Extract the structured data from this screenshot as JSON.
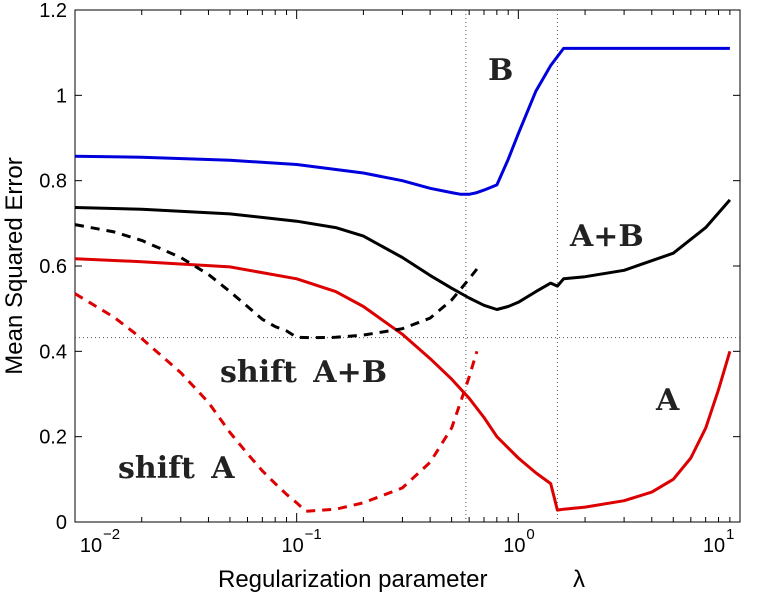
{
  "chart_data": {
    "type": "line",
    "title": "",
    "xlabel": "Regularization parameter",
    "xlabel_symbol": "λ",
    "ylabel": "Mean Squared Error",
    "xscale": "log",
    "xlim": [
      0.01,
      10
    ],
    "ylim": [
      0,
      1.2
    ],
    "grid": false,
    "xticks": [
      {
        "base": "10",
        "exp": "−2",
        "value": 0.01
      },
      {
        "base": "10",
        "exp": "−1",
        "value": 0.1
      },
      {
        "base": "10",
        "exp": "0",
        "value": 1
      },
      {
        "base": "10",
        "exp": "1",
        "value": 10
      }
    ],
    "yticks": [
      "0",
      "0.2",
      "0.4",
      "0.6",
      "0.8",
      "1",
      "1.2"
    ],
    "yticks_values": [
      0,
      0.2,
      0.4,
      0.6,
      0.8,
      1.0,
      1.2
    ],
    "reference_lines": [
      {
        "orientation": "vertical",
        "x": 0.58,
        "style": "dotted"
      },
      {
        "orientation": "vertical",
        "x": 1.5,
        "style": "dotted"
      },
      {
        "orientation": "horizontal",
        "y": 0.432,
        "style": "dotted"
      }
    ],
    "series": [
      {
        "name": "B",
        "color": "#0000dd",
        "style": "solid",
        "x": [
          0.01,
          0.02,
          0.05,
          0.1,
          0.2,
          0.3,
          0.4,
          0.5,
          0.55,
          0.6,
          0.65,
          0.7,
          0.8,
          0.9,
          1.0,
          1.2,
          1.4,
          1.6,
          2.0,
          3.0,
          5.0,
          9.0
        ],
        "y": [
          0.857,
          0.855,
          0.848,
          0.838,
          0.818,
          0.8,
          0.782,
          0.772,
          0.768,
          0.768,
          0.772,
          0.778,
          0.79,
          0.85,
          0.91,
          1.01,
          1.07,
          1.11,
          1.11,
          1.11,
          1.11,
          1.11
        ]
      },
      {
        "name": "A+B",
        "color": "#000000",
        "style": "solid",
        "x": [
          0.01,
          0.02,
          0.05,
          0.1,
          0.15,
          0.2,
          0.3,
          0.4,
          0.5,
          0.6,
          0.7,
          0.8,
          0.9,
          1.0,
          1.2,
          1.4,
          1.5,
          1.6,
          2.0,
          3.0,
          5.0,
          7.0,
          9.0
        ],
        "y": [
          0.737,
          0.733,
          0.722,
          0.705,
          0.69,
          0.67,
          0.62,
          0.578,
          0.548,
          0.525,
          0.508,
          0.498,
          0.505,
          0.515,
          0.54,
          0.56,
          0.553,
          0.57,
          0.575,
          0.59,
          0.63,
          0.69,
          0.755
        ]
      },
      {
        "name": "A",
        "color": "#dd0000",
        "style": "solid",
        "x": [
          0.01,
          0.02,
          0.05,
          0.1,
          0.15,
          0.2,
          0.3,
          0.4,
          0.5,
          0.6,
          0.7,
          0.8,
          1.0,
          1.2,
          1.4,
          1.5,
          1.6,
          2.0,
          3.0,
          4.0,
          5.0,
          6.0,
          7.0,
          8.0,
          9.0
        ],
        "y": [
          0.617,
          0.61,
          0.598,
          0.57,
          0.54,
          0.505,
          0.44,
          0.383,
          0.335,
          0.29,
          0.245,
          0.2,
          0.15,
          0.115,
          0.09,
          0.028,
          0.03,
          0.035,
          0.05,
          0.07,
          0.1,
          0.15,
          0.22,
          0.31,
          0.4
        ]
      },
      {
        "name": "shift A+B",
        "color": "#000000",
        "style": "dashed",
        "x": [
          0.01,
          0.015,
          0.02,
          0.03,
          0.04,
          0.05,
          0.06,
          0.07,
          0.08,
          0.09,
          0.1,
          0.12,
          0.15,
          0.2,
          0.3,
          0.4,
          0.5,
          0.6,
          0.65
        ],
        "y": [
          0.697,
          0.68,
          0.66,
          0.62,
          0.58,
          0.54,
          0.505,
          0.475,
          0.458,
          0.448,
          0.433,
          0.432,
          0.433,
          0.438,
          0.453,
          0.478,
          0.52,
          0.57,
          0.593
        ]
      },
      {
        "name": "shift A",
        "color": "#dd0000",
        "style": "dashed",
        "x": [
          0.01,
          0.015,
          0.02,
          0.03,
          0.04,
          0.05,
          0.06,
          0.07,
          0.08,
          0.09,
          0.1,
          0.11,
          0.15,
          0.2,
          0.3,
          0.4,
          0.5,
          0.6,
          0.65
        ],
        "y": [
          0.535,
          0.48,
          0.43,
          0.35,
          0.28,
          0.21,
          0.16,
          0.12,
          0.09,
          0.065,
          0.045,
          0.025,
          0.03,
          0.045,
          0.08,
          0.14,
          0.22,
          0.34,
          0.4
        ]
      }
    ],
    "annotations": [
      "B",
      "A+B",
      "A",
      "shift A+B",
      "shift A"
    ]
  }
}
